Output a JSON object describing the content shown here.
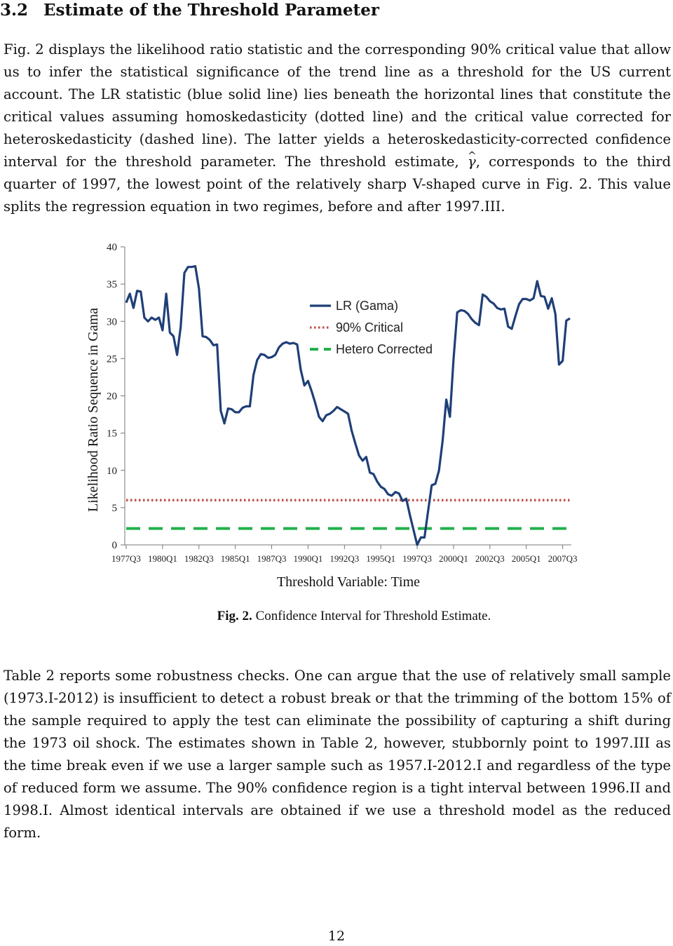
{
  "section": {
    "number": "3.2",
    "title": "Estimate of the Threshold Parameter"
  },
  "para1": {
    "part1": "Fig. 2 displays the likelihood ratio statistic and the corresponding 90% critical value that allow us to infer the statistical significance of the trend line as a threshold for the US current account. The LR statistic (blue solid line) lies beneath the horizontal lines that constitute the critical values assuming homoskedasticity (dotted line) and the critical value corrected for heteroskedasticity (dashed line). The latter yields a heteroskedasticity-corrected confidence interval for the threshold parameter. The threshold estimate, ",
    "gamma": "γ",
    "part2": ", corresponds to the third quarter of 1997, the lowest point of the relatively sharp V-shaped curve in Fig. 2. This value splits the regression equation in two regimes, before and after 1997.III."
  },
  "caption": {
    "number": "Fig. 2.",
    "text": " Confidence Interval for Threshold Estimate."
  },
  "para2": "Table 2 reports some robustness checks. One can argue that the use of relatively small sample (1973.I-2012) is insufficient to detect a robust break or that the trimming of the bottom 15% of the sample required to apply the test can eliminate the possibility of capturing a shift during the 1973 oil shock. The estimates shown in Table 2, however, stubbornly point to 1997.III as the time break even if we use a larger sample such as 1957.I-2012.I and regardless of the type of reduced form we assume. The 90% confidence region is a tight interval between 1996.II and 1998.I. Almost identical intervals are obtained if we use a threshold model as the reduced form.",
  "page_number": "12",
  "chart_data": {
    "type": "line",
    "xlabel": "Threshold Variable: Time",
    "ylabel": "Likelihood Ratio Sequence in Gama",
    "ylim": [
      0,
      40
    ],
    "yticks": [
      0,
      5,
      10,
      15,
      20,
      25,
      30,
      35,
      40
    ],
    "x_start": "1977Q3",
    "x_end": "2008Q2",
    "xtick_labels": [
      "1977Q3",
      "1980Q1",
      "1982Q3",
      "1985Q1",
      "1987Q3",
      "1990Q1",
      "1992Q3",
      "1995Q1",
      "1997Q3",
      "2000Q1",
      "2002Q3",
      "2005Q1",
      "2007Q3"
    ],
    "legend_position": "top-center",
    "colors": {
      "lr": "#1f3f77",
      "critical": "#c0504d",
      "hetero": "#22b14c"
    },
    "series": [
      {
        "name": "LR (Gama)",
        "style": "solid",
        "values": [
          32.5,
          33.7,
          31.8,
          34.1,
          34.0,
          30.5,
          30.0,
          30.5,
          30.2,
          30.5,
          28.8,
          33.7,
          28.5,
          28.0,
          25.5,
          29.3,
          36.5,
          37.3,
          37.3,
          37.4,
          34.4,
          28.0,
          27.9,
          27.5,
          26.8,
          26.9,
          18.0,
          16.3,
          18.3,
          18.2,
          17.8,
          17.8,
          18.4,
          18.6,
          18.6,
          22.8,
          24.8,
          25.6,
          25.5,
          25.1,
          25.2,
          25.5,
          26.5,
          27.0,
          27.2,
          27.0,
          27.1,
          26.9,
          23.5,
          21.4,
          22.0,
          20.6,
          19.0,
          17.2,
          16.6,
          17.4,
          17.6,
          18.0,
          18.5,
          18.2,
          17.9,
          17.6,
          15.3,
          13.6,
          12.0,
          11.3,
          11.8,
          9.7,
          9.5,
          8.5,
          7.8,
          7.5,
          6.8,
          6.6,
          7.1,
          6.9,
          5.9,
          6.2,
          4.0,
          2.0,
          0.0,
          1.0,
          1.0,
          4.5,
          8.0,
          8.2,
          10.0,
          14.0,
          19.5,
          17.2,
          25.0,
          31.2,
          31.5,
          31.4,
          31.0,
          30.3,
          29.8,
          29.5,
          33.6,
          33.3,
          32.7,
          32.4,
          31.8,
          31.6,
          31.7,
          29.3,
          29.0,
          30.7,
          32.3,
          33.0,
          33.0,
          32.8,
          33.1,
          35.4,
          33.4,
          33.3,
          31.7,
          33.1,
          31.0,
          24.2,
          24.7,
          30.1,
          30.4
        ]
      },
      {
        "name": "90% Critical",
        "style": "dotted",
        "value": 6.0
      },
      {
        "name": "Hetero Corrected",
        "style": "dashed",
        "value": 2.2
      }
    ]
  }
}
